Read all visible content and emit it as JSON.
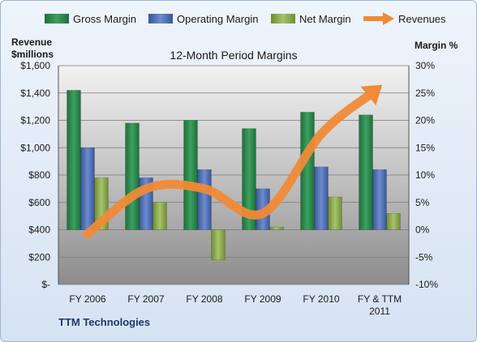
{
  "chart_data": {
    "type": "bar",
    "title": "12-Month Period Margins",
    "categories": [
      "FY 2006",
      "FY 2007",
      "FY 2008",
      "FY 2009",
      "FY 2010",
      "FY & TTM 2011"
    ],
    "series": [
      {
        "name": "Gross Margin",
        "axis": "right",
        "type": "bar",
        "color": "#2e8b57",
        "values": [
          25.5,
          19.5,
          20.0,
          18.5,
          21.5,
          21.0
        ]
      },
      {
        "name": "Operating Margin",
        "axis": "right",
        "type": "bar",
        "color": "#4f6fb4",
        "values": [
          15.0,
          9.5,
          11.0,
          7.5,
          11.5,
          11.0
        ]
      },
      {
        "name": "Net Margin",
        "axis": "right",
        "type": "bar",
        "color": "#8fae4f",
        "values": [
          9.5,
          5.0,
          -5.5,
          0.5,
          6.0,
          3.0
        ]
      },
      {
        "name": "Revenues",
        "axis": "left",
        "type": "line",
        "color": "#f08a36",
        "values": [
          370,
          700,
          700,
          520,
          1100,
          1445
        ]
      }
    ],
    "left_axis": {
      "label": "Revenue $millions",
      "label_lines": [
        "Revenue",
        "$millions"
      ],
      "range": [
        0,
        1600
      ],
      "ticks": [
        "$-",
        "$200",
        "$400",
        "$600",
        "$800",
        "$1,000",
        "$1,200",
        "$1,400",
        "$1,600"
      ]
    },
    "right_axis": {
      "label": "Margin %",
      "range": [
        -10,
        30
      ],
      "ticks": [
        "-10%",
        "-5%",
        "0%",
        "5%",
        "10%",
        "15%",
        "20%",
        "25%",
        "30%"
      ]
    },
    "legend": [
      "Gross Margin",
      "Operating Margin",
      "Net Margin",
      "Revenues"
    ],
    "legend_position": "top",
    "gridlines": true,
    "footer": "TTM Technologies"
  }
}
